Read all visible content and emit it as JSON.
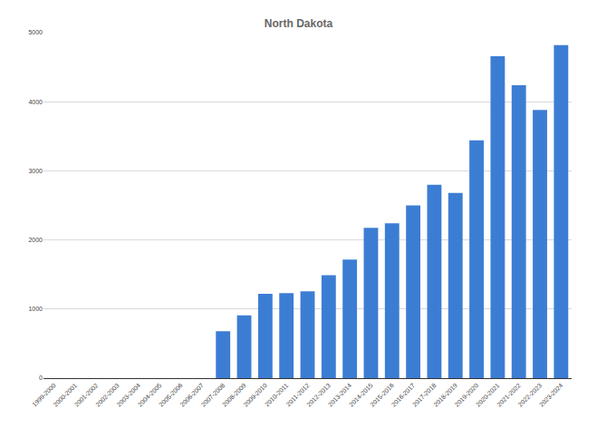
{
  "chart_data": {
    "type": "bar",
    "title": "North Dakota",
    "categories": [
      "1999-2000",
      "2000-2001",
      "2001-2002",
      "2002-2003",
      "2003-2004",
      "2004-2005",
      "2005-2006",
      "2006-2007",
      "2007-2008",
      "2008-2009",
      "2009-2010",
      "2010-2011",
      "2011-2012",
      "2012-2013",
      "2013-2014",
      "2014-2015",
      "2015-2016",
      "2016-2017",
      "2017-2018",
      "2018-2019",
      "2019-2020",
      "2020-2021",
      "2021-2022",
      "2022-2023",
      "2023-2024"
    ],
    "values": [
      0,
      0,
      0,
      0,
      0,
      0,
      0,
      0,
      680,
      910,
      1220,
      1230,
      1255,
      1490,
      1715,
      2175,
      2240,
      2500,
      2800,
      2680,
      3440,
      4660,
      4240,
      3880,
      4820
    ],
    "color": "#3c7dd4",
    "ylim": [
      0,
      5000
    ],
    "yticks": [
      0,
      1000,
      2000,
      3000,
      4000,
      5000
    ],
    "grid": true
  }
}
